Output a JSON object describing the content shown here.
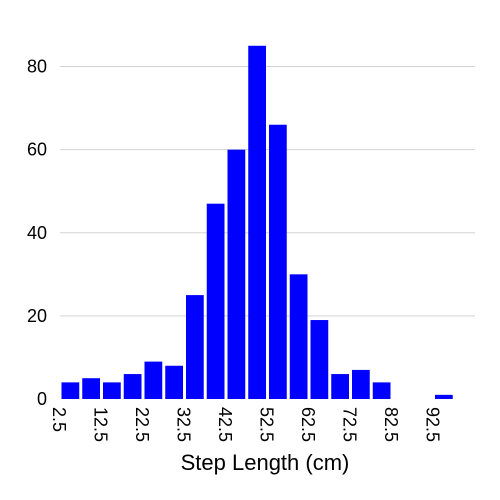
{
  "chart_data": {
    "type": "bar",
    "xlabel": "Step Length (cm)",
    "ylabel": "",
    "bin_width": 5,
    "categories": [
      "5",
      "10",
      "15",
      "20",
      "25",
      "30",
      "35",
      "40",
      "45",
      "50",
      "55",
      "60",
      "65",
      "70",
      "75",
      "80",
      "85",
      "90",
      "95",
      "100"
    ],
    "values": [
      4,
      5,
      4,
      6,
      9,
      8,
      25,
      47,
      60,
      85,
      66,
      30,
      19,
      6,
      7,
      4,
      0,
      0,
      1,
      0
    ],
    "x_ticks": [
      "2.5",
      "12.5",
      "22.5",
      "32.5",
      "42.5",
      "52.5",
      "62.5",
      "72.5",
      "82.5",
      "92.5"
    ],
    "x_tick_values": [
      2.5,
      12.5,
      22.5,
      32.5,
      42.5,
      52.5,
      62.5,
      72.5,
      82.5,
      92.5
    ],
    "y_ticks": [
      "0",
      "20",
      "40",
      "60",
      "80"
    ],
    "y_tick_values": [
      0,
      20,
      40,
      60,
      80
    ],
    "xlim": [
      2.5,
      102.5
    ],
    "ylim": [
      0,
      90
    ],
    "grid": true,
    "bar_color": "#0000ff",
    "grid_color": "#d3d3d3"
  }
}
